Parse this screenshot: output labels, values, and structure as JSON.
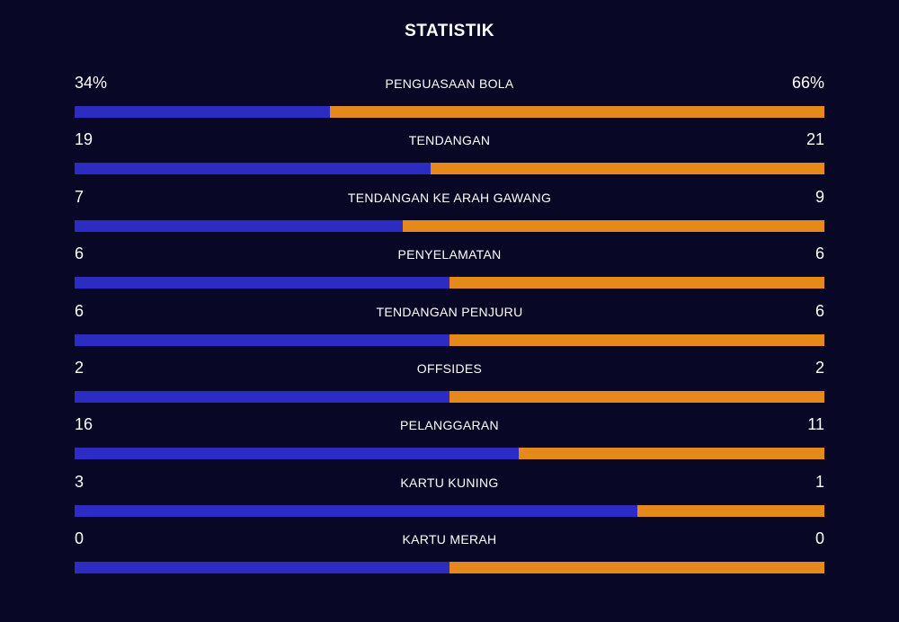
{
  "title": "STATISTIK",
  "colors": {
    "background": "#080826",
    "home_bar": "#2c2cc3",
    "away_bar": "#e5891b",
    "text": "#ffffff"
  },
  "stats": [
    {
      "label": "PENGUASAAN BOLA",
      "left": "34%",
      "right": "66%",
      "left_share": 0.34
    },
    {
      "label": "TENDANGAN",
      "left": "19",
      "right": "21",
      "left_share": 0.475
    },
    {
      "label": "TENDANGAN KE ARAH GAWANG",
      "left": "7",
      "right": "9",
      "left_share": 0.4375
    },
    {
      "label": "PENYELAMATAN",
      "left": "6",
      "right": "6",
      "left_share": 0.5
    },
    {
      "label": "TENDANGAN PENJURU",
      "left": "6",
      "right": "6",
      "left_share": 0.5
    },
    {
      "label": "OFFSIDES",
      "left": "2",
      "right": "2",
      "left_share": 0.5
    },
    {
      "label": "PELANGGARAN",
      "left": "16",
      "right": "11",
      "left_share": 0.5926
    },
    {
      "label": "KARTU KUNING",
      "left": "3",
      "right": "1",
      "left_share": 0.75
    },
    {
      "label": "KARTU MERAH",
      "left": "0",
      "right": "0",
      "left_share": 0.5
    }
  ]
}
